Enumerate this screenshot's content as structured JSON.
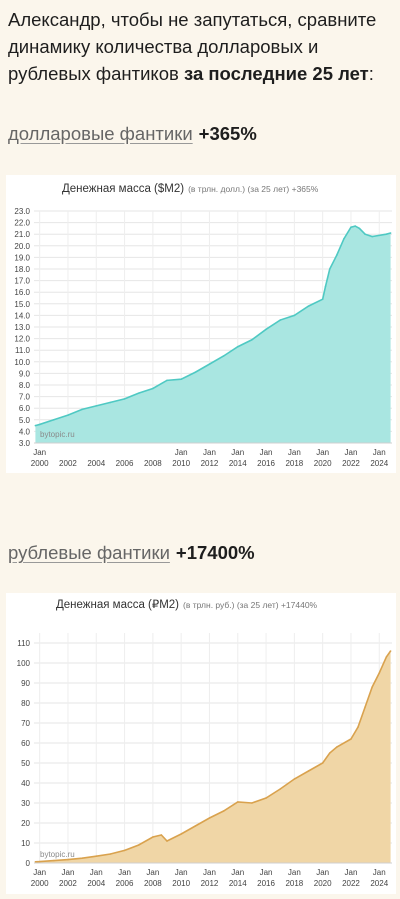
{
  "intro": {
    "text": "Александр, чтобы не запутаться, сравните динамику количества долларовых и рублевых фантиков ",
    "bold": "за последние 25 лет",
    "tail": ":"
  },
  "section_usd": {
    "link": "долларовые фантики",
    "pct": "+365%"
  },
  "section_rub": {
    "link": "рублевые фантики",
    "pct": "+17400%"
  },
  "chart_data": [
    {
      "type": "area",
      "title": "Денежная масса ($M2)",
      "subtitle": "(в трлн. долл.) (за 25 лет) +365%",
      "watermark": "bytopic.ru",
      "color": "#4fc9c3",
      "fill": "#a9e6e1",
      "ylim": [
        3.0,
        23.0
      ],
      "yticks": [
        "3.0",
        "4.0",
        "5.0",
        "6.0",
        "7.0",
        "8.0",
        "9.0",
        "10.0",
        "11.0",
        "12.0",
        "13.0",
        "14.0",
        "15.0",
        "16.0",
        "17.0",
        "18.0",
        "19.0",
        "20.0",
        "21.0",
        "22.0",
        "23.0"
      ],
      "xlim": [
        1999.6,
        2024.9
      ],
      "xtick_labels": [
        {
          "top": "Jan",
          "bottom": "2000",
          "x": 2000
        },
        {
          "top": "",
          "bottom": "2002",
          "x": 2002
        },
        {
          "top": "",
          "bottom": "2004",
          "x": 2004
        },
        {
          "top": "",
          "bottom": "2006",
          "x": 2006
        },
        {
          "top": "",
          "bottom": "2008",
          "x": 2008
        },
        {
          "top": "Jan",
          "bottom": "2010",
          "x": 2010
        },
        {
          "top": "Jan",
          "bottom": "2012",
          "x": 2012
        },
        {
          "top": "Jan",
          "bottom": "2014",
          "x": 2014
        },
        {
          "top": "Jan",
          "bottom": "2016",
          "x": 2016
        },
        {
          "top": "Jan",
          "bottom": "2018",
          "x": 2018
        },
        {
          "top": "Jan",
          "bottom": "2020",
          "x": 2020
        },
        {
          "top": "Jan",
          "bottom": "2022",
          "x": 2022
        },
        {
          "top": "Jan",
          "bottom": "2024",
          "x": 2024
        }
      ],
      "x": [
        1999.7,
        2000,
        2001,
        2002,
        2003,
        2004,
        2005,
        2006,
        2007,
        2008,
        2009,
        2010,
        2011,
        2012,
        2013,
        2014,
        2015,
        2016,
        2017,
        2018,
        2019,
        2020,
        2020.2,
        2020.5,
        2021,
        2021.5,
        2022,
        2022.3,
        2022.6,
        2023,
        2023.5,
        2024,
        2024.5,
        2024.8
      ],
      "y": [
        4.5,
        4.6,
        5.0,
        5.4,
        5.9,
        6.2,
        6.5,
        6.8,
        7.3,
        7.7,
        8.4,
        8.5,
        9.1,
        9.8,
        10.5,
        11.3,
        11.9,
        12.8,
        13.6,
        14.0,
        14.8,
        15.4,
        16.5,
        18.0,
        19.2,
        20.6,
        21.6,
        21.7,
        21.5,
        21.0,
        20.8,
        20.9,
        21.0,
        21.1
      ]
    },
    {
      "type": "area",
      "title": "Денежная масса (₽M2)",
      "subtitle": "(в трлн. руб.) (за 25 лет) +17440%",
      "watermark": "bytopic.ru",
      "color": "#d9a24e",
      "fill": "#f0d6a6",
      "ylim": [
        0,
        115
      ],
      "yticks": [
        "0",
        "10",
        "20",
        "30",
        "40",
        "50",
        "60",
        "70",
        "80",
        "90",
        "100",
        "110"
      ],
      "xlim": [
        1999.6,
        2024.9
      ],
      "xtick_labels": [
        {
          "top": "Jan",
          "bottom": "2000",
          "x": 2000
        },
        {
          "top": "Jan",
          "bottom": "2002",
          "x": 2002
        },
        {
          "top": "Jan",
          "bottom": "2004",
          "x": 2004
        },
        {
          "top": "Jan",
          "bottom": "2006",
          "x": 2006
        },
        {
          "top": "Jan",
          "bottom": "2008",
          "x": 2008
        },
        {
          "top": "Jan",
          "bottom": "2010",
          "x": 2010
        },
        {
          "top": "Jan",
          "bottom": "2012",
          "x": 2012
        },
        {
          "top": "Jan",
          "bottom": "2014",
          "x": 2014
        },
        {
          "top": "Jan",
          "bottom": "2016",
          "x": 2016
        },
        {
          "top": "Jan",
          "bottom": "2018",
          "x": 2018
        },
        {
          "top": "Jan",
          "bottom": "2020",
          "x": 2020
        },
        {
          "top": "Jan",
          "bottom": "2022",
          "x": 2022
        },
        {
          "top": "Jan",
          "bottom": "2024",
          "x": 2024
        }
      ],
      "x": [
        1999.7,
        2000,
        2001,
        2002,
        2003,
        2004,
        2005,
        2006,
        2007,
        2008,
        2008.6,
        2009,
        2010,
        2011,
        2012,
        2013,
        2014,
        2015,
        2016,
        2017,
        2018,
        2019,
        2020,
        2020.5,
        2021,
        2022,
        2022.5,
        2023,
        2023.5,
        2024,
        2024.5,
        2024.8
      ],
      "y": [
        0.6,
        0.7,
        1.2,
        1.7,
        2.4,
        3.4,
        4.5,
        6.3,
        9.0,
        13.0,
        14.0,
        11.0,
        14.5,
        18.5,
        22.5,
        26.0,
        30.5,
        30.0,
        32.5,
        37.0,
        42.0,
        46.0,
        50.0,
        55.0,
        58.0,
        62.0,
        68.0,
        78.0,
        88.0,
        95.0,
        103.0,
        106.0
      ]
    }
  ]
}
